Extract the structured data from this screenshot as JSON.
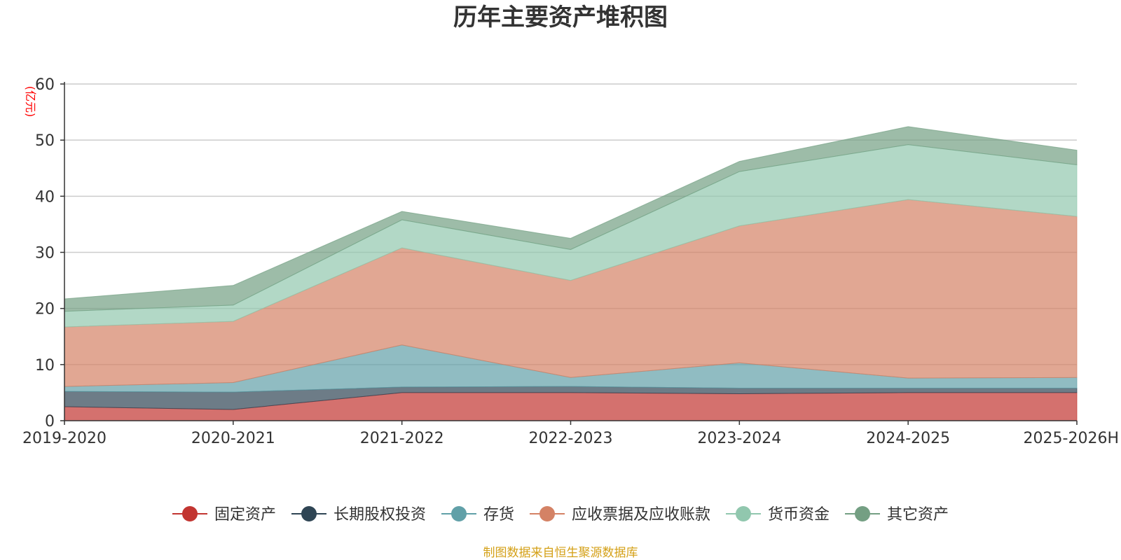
{
  "chart_data": {
    "type": "area",
    "stacked": true,
    "title": "历年主要资产堆积图",
    "ylabel": "(亿元)",
    "xlabel": "",
    "ylim": [
      0,
      60
    ],
    "yticks": [
      "0",
      "10",
      "20",
      "30",
      "40",
      "50",
      "60"
    ],
    "categories": [
      "2019-2020",
      "2020-2021",
      "2021-2022",
      "2022-2023",
      "2023-2024",
      "2024-2025",
      "2025-2026H"
    ],
    "grid": true,
    "legend_position": "bottom",
    "series": [
      {
        "name": "固定资产",
        "color": "#c23531",
        "values": [
          2.5,
          2.0,
          5.0,
          5.0,
          4.8,
          5.0,
          5.0
        ]
      },
      {
        "name": "长期股权投资",
        "color": "#2f4554",
        "values": [
          2.7,
          3.1,
          1.0,
          1.1,
          1.0,
          0.8,
          0.8
        ]
      },
      {
        "name": "存货",
        "color": "#61a0a8",
        "values": [
          0.9,
          1.7,
          7.5,
          1.6,
          4.5,
          1.8,
          1.9
        ]
      },
      {
        "name": "应收票据及应收账款",
        "color": "#d48265",
        "values": [
          10.6,
          10.9,
          17.3,
          17.3,
          24.4,
          31.8,
          28.7
        ]
      },
      {
        "name": "货币资金",
        "color": "#91c7ae",
        "values": [
          2.8,
          2.9,
          5.0,
          5.5,
          9.7,
          9.8,
          9.2
        ]
      },
      {
        "name": "其它资产",
        "color": "#749f83",
        "values": [
          2.2,
          3.5,
          1.5,
          2.0,
          1.8,
          3.2,
          2.6
        ]
      }
    ],
    "source": "制图数据来自恒生聚源数据库",
    "colors": {
      "axis": "#333333",
      "grid": "#cccccc",
      "ylabel": "#ff0000",
      "source": "#d4a017"
    }
  }
}
